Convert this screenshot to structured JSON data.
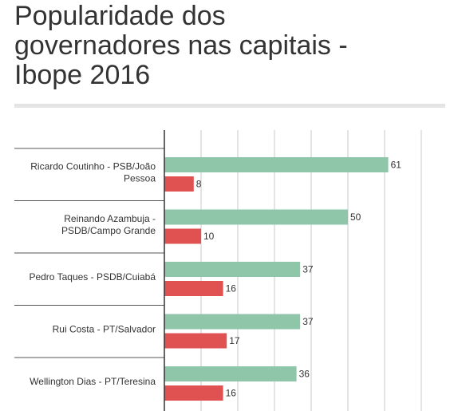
{
  "title": "Popularidade dos\ngovernadores nas capitais -\nIbope 2016",
  "colors": {
    "series_a": "#8fc5a8",
    "series_b": "#e05252",
    "grid": "#c8c8c8",
    "axis": "#333333",
    "separator": "#555555"
  },
  "chart_data": {
    "type": "bar",
    "orientation": "horizontal",
    "categories": [
      [
        "Ricardo Coutinho - PSB/João",
        "Pessoa"
      ],
      [
        "Reinando Azambuja -",
        "PSDB/Campo Grande"
      ],
      [
        "Pedro Taques - PSDB/Cuiabá"
      ],
      [
        "Rui Costa - PT/Salvador"
      ],
      [
        "Wellington Dias - PT/Teresina"
      ]
    ],
    "series": [
      {
        "values": [
          61,
          50,
          37,
          37,
          36
        ]
      },
      {
        "values": [
          8,
          10,
          16,
          17,
          16
        ]
      }
    ],
    "xlim": [
      0,
      70
    ],
    "grid": true,
    "gridlines": [
      0,
      10,
      20,
      30,
      40,
      50,
      60,
      70
    ],
    "legend": "none"
  }
}
